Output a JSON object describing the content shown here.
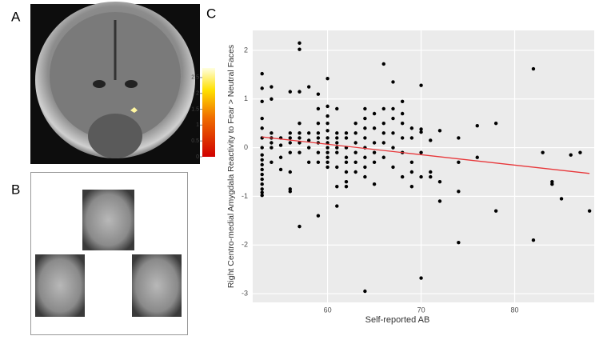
{
  "panels": {
    "a": "A",
    "b": "B",
    "c": "C"
  },
  "colorbar": {
    "lim": [
      0,
      2.8
    ],
    "ticks": [
      0,
      0.5,
      1,
      1.5,
      2,
      2.5
    ]
  },
  "chart_data": {
    "type": "scatter",
    "x_label": "Self-reported AB",
    "y_label": "Right Centro-medial Amygdala Reactivity to Fear > Neutral Faces",
    "x": [
      53,
      53,
      53,
      53,
      53,
      53,
      53,
      53,
      53,
      53,
      53,
      53,
      53,
      53,
      53,
      53,
      53,
      54,
      54,
      54,
      54,
      54,
      54,
      54,
      55,
      55,
      55,
      55,
      56,
      56,
      56,
      56,
      56,
      56,
      56,
      56,
      57,
      57,
      57,
      57,
      57,
      57,
      57,
      57,
      57,
      58,
      58,
      58,
      58,
      58,
      59,
      59,
      59,
      59,
      59,
      59,
      59,
      59,
      59,
      60,
      60,
      60,
      60,
      60,
      60,
      60,
      60,
      60,
      60,
      60,
      60,
      61,
      61,
      61,
      61,
      61,
      61,
      61,
      61,
      61,
      62,
      62,
      62,
      62,
      62,
      62,
      62,
      62,
      63,
      63,
      63,
      63,
      63,
      63,
      64,
      64,
      64,
      64,
      64,
      64,
      64,
      64,
      64,
      65,
      65,
      65,
      65,
      65,
      65,
      66,
      66,
      66,
      66,
      66,
      66,
      67,
      67,
      67,
      67,
      67,
      67,
      68,
      68,
      68,
      68,
      68,
      68,
      69,
      69,
      69,
      69,
      69,
      70,
      70,
      70,
      70,
      70,
      70,
      71,
      71,
      71,
      72,
      72,
      72,
      74,
      74,
      74,
      74,
      76,
      76,
      78,
      78,
      82,
      82,
      83,
      84,
      84,
      85,
      86,
      87,
      88
    ],
    "values": [
      1.52,
      1.22,
      0.95,
      0.6,
      0.4,
      0.2,
      0.0,
      -0.15,
      -0.25,
      -0.35,
      -0.45,
      -0.55,
      -0.65,
      -0.75,
      -0.85,
      -0.92,
      -0.98,
      1.25,
      1.0,
      0.3,
      0.2,
      0.1,
      0.0,
      -0.3,
      0.2,
      0.05,
      -0.2,
      -0.45,
      1.15,
      0.3,
      0.2,
      0.1,
      -0.1,
      -0.5,
      -0.85,
      -0.9,
      2.15,
      2.02,
      1.15,
      0.5,
      0.3,
      0.2,
      0.1,
      -0.1,
      -1.62,
      1.25,
      0.3,
      0.15,
      0.0,
      -0.3,
      1.1,
      0.8,
      0.5,
      0.3,
      0.2,
      0.1,
      -0.1,
      -0.3,
      -1.4,
      1.42,
      0.85,
      0.65,
      0.5,
      0.35,
      0.2,
      0.1,
      0.0,
      -0.1,
      -0.2,
      -0.3,
      -0.4,
      0.8,
      0.3,
      0.2,
      0.1,
      0.0,
      -0.1,
      -0.4,
      -0.8,
      -1.2,
      0.3,
      0.2,
      0.0,
      -0.2,
      -0.3,
      -0.5,
      -0.7,
      -0.8,
      0.5,
      0.3,
      0.1,
      -0.1,
      -0.3,
      -0.5,
      0.8,
      0.6,
      0.4,
      0.2,
      0.0,
      -0.2,
      -0.4,
      -0.6,
      -2.95,
      0.7,
      0.4,
      0.1,
      -0.1,
      -0.3,
      -0.75,
      1.72,
      0.8,
      0.5,
      0.3,
      0.1,
      -0.2,
      1.35,
      0.8,
      0.6,
      0.3,
      0.0,
      -0.4,
      0.95,
      0.7,
      0.5,
      0.2,
      -0.1,
      -0.6,
      0.4,
      0.2,
      -0.3,
      -0.5,
      -0.8,
      1.28,
      0.38,
      0.32,
      -0.1,
      -0.6,
      -2.68,
      0.15,
      -0.5,
      -0.6,
      0.35,
      -0.7,
      -1.1,
      0.2,
      -0.3,
      -0.9,
      -1.95,
      0.45,
      -0.2,
      0.5,
      -1.3,
      1.62,
      -1.9,
      -0.1,
      -0.7,
      -0.75,
      -1.05,
      -0.15,
      -0.1,
      -1.3
    ],
    "color": "#000000",
    "fit": {
      "x": [
        53,
        88
      ],
      "values": [
        0.22,
        -0.53
      ],
      "color": "#e8373a"
    },
    "xlim": [
      52,
      88.5
    ],
    "xticks": [
      60,
      70,
      80
    ],
    "ylim": [
      -3.18,
      2.41
    ],
    "yticks": [
      -3,
      -2,
      -1,
      0,
      1,
      2
    ],
    "grid": true
  }
}
